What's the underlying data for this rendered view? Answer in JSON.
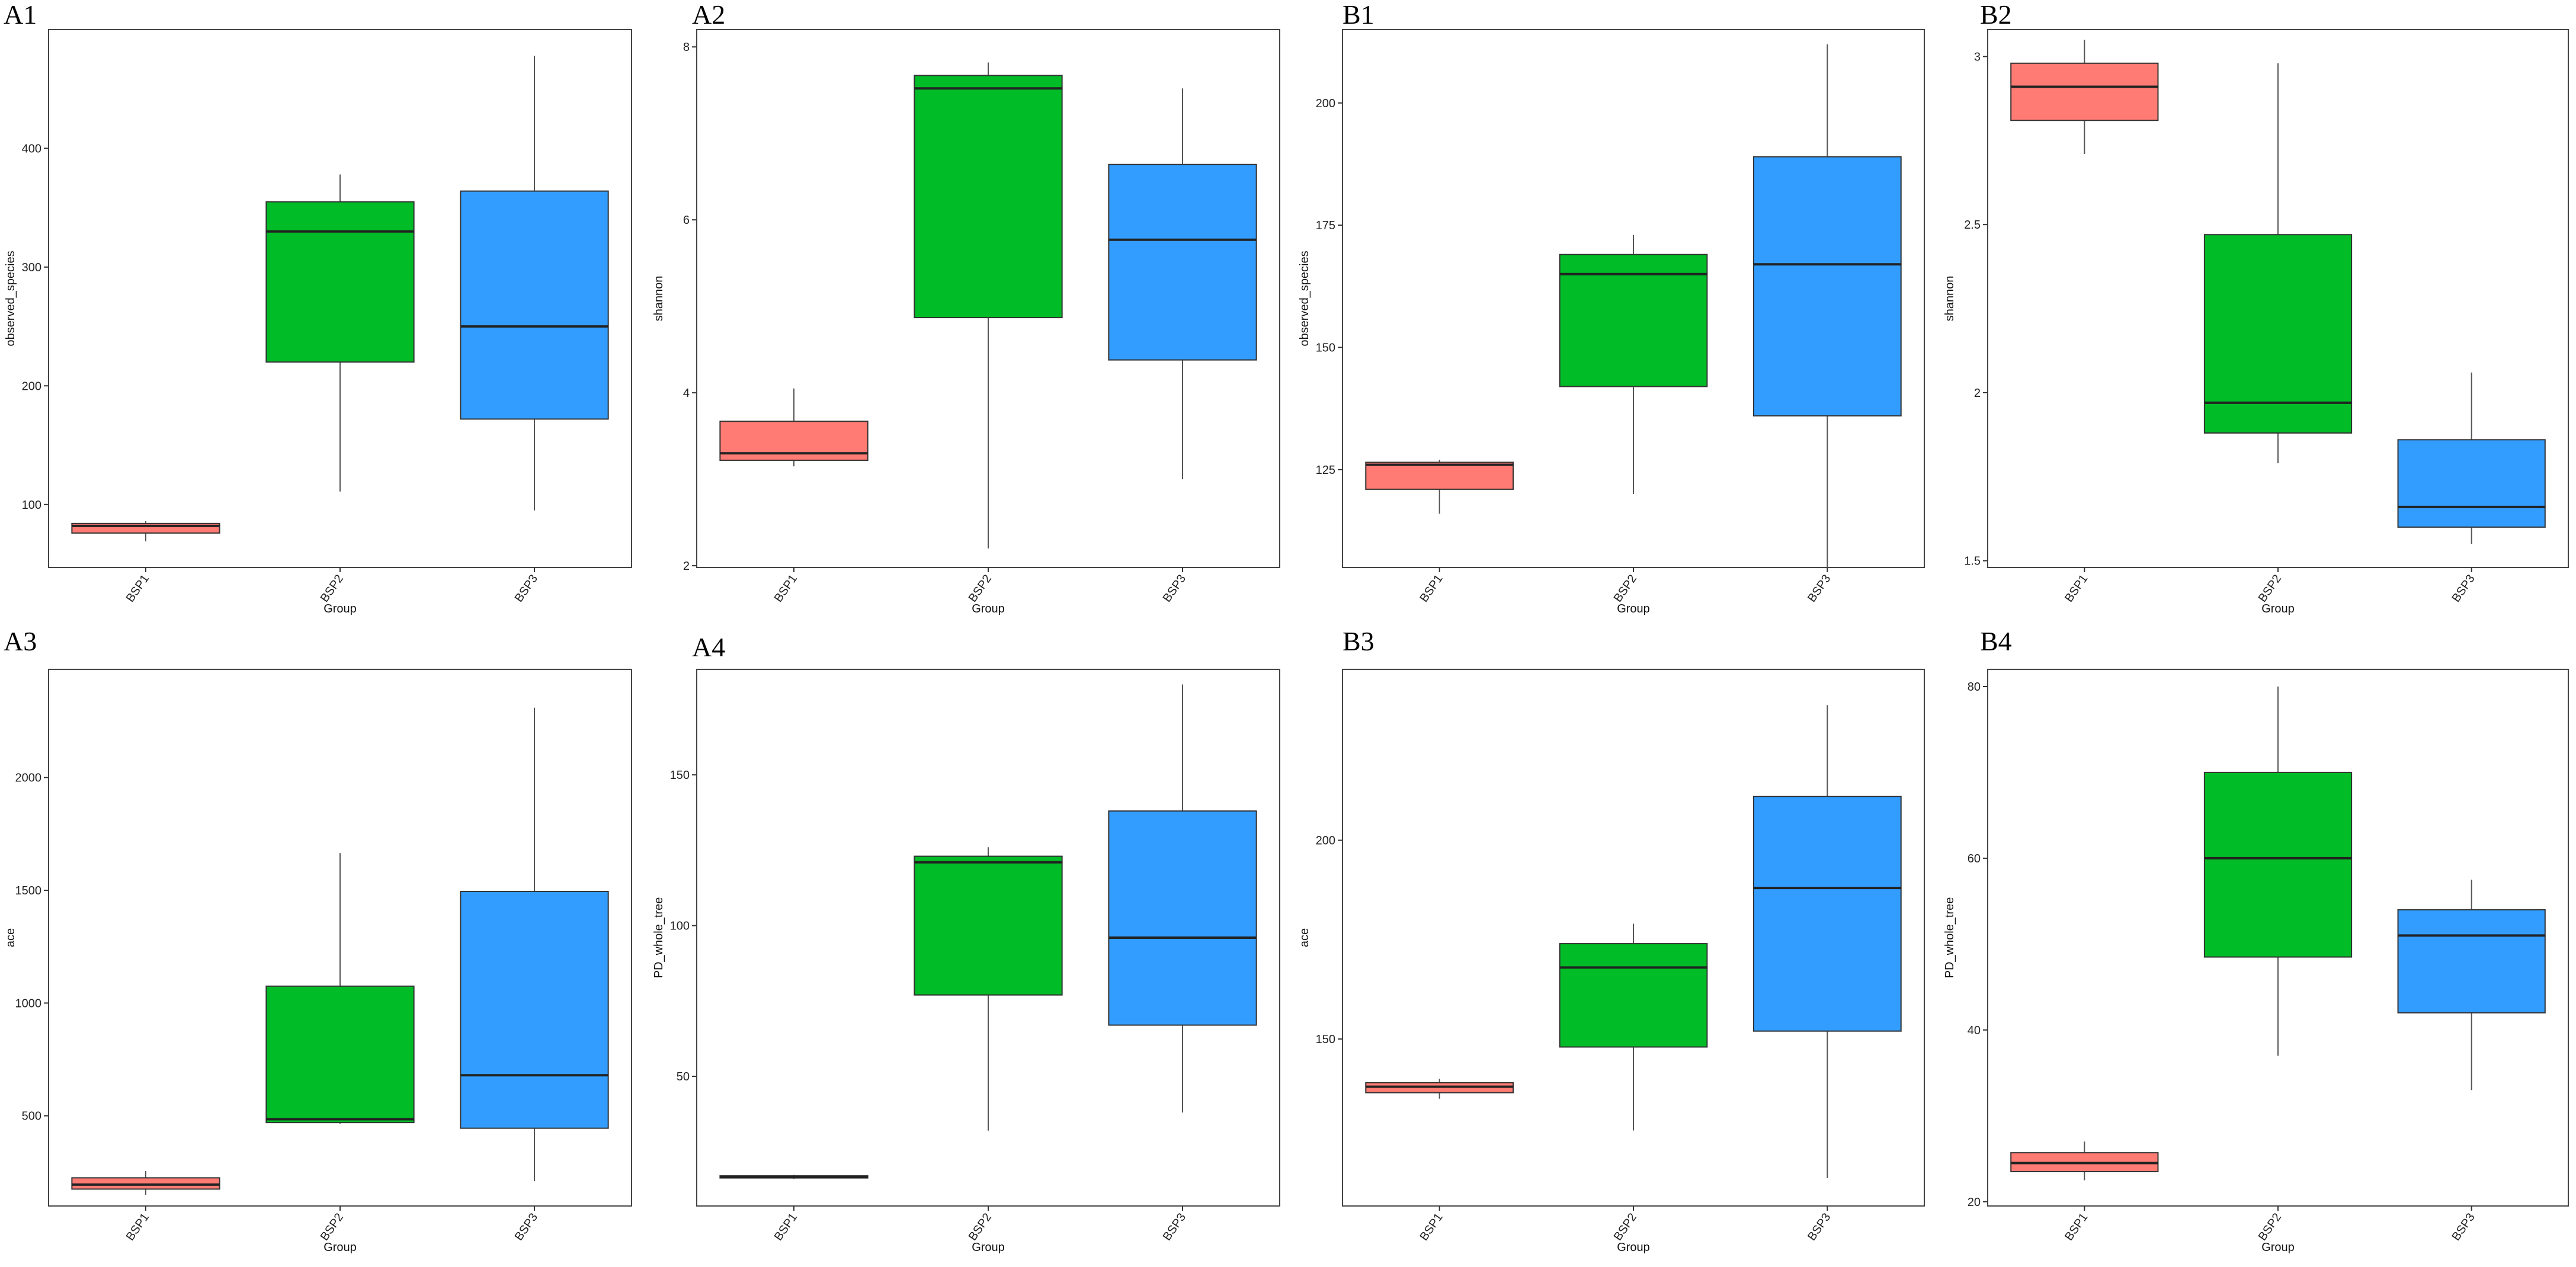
{
  "colors": {
    "BSP1": "#FF7B73",
    "BSP2": "#00BC26",
    "BSP3": "#339DFF"
  },
  "chart_data": [
    {
      "panel": "A1",
      "type": "box",
      "xlabel": "Group",
      "ylabel": "observed_species",
      "categories": [
        "BSP1",
        "BSP2",
        "BSP3"
      ],
      "ylim": [
        47,
        500
      ],
      "yticks": [
        100,
        200,
        300,
        400
      ],
      "boxes": [
        {
          "group": "BSP1",
          "min": 69,
          "q1": 76,
          "median": 82,
          "q3": 84,
          "max": 86
        },
        {
          "group": "BSP2",
          "min": 111,
          "q1": 220,
          "median": 330,
          "q3": 355,
          "max": 378
        },
        {
          "group": "BSP3",
          "min": 95,
          "q1": 172,
          "median": 250,
          "q3": 364,
          "max": 478
        }
      ]
    },
    {
      "panel": "A2",
      "type": "box",
      "xlabel": "Group",
      "ylabel": "shannon",
      "categories": [
        "BSP1",
        "BSP2",
        "BSP3"
      ],
      "ylim": [
        1.98,
        8.2
      ],
      "yticks": [
        2,
        4,
        6,
        8
      ],
      "boxes": [
        {
          "group": "BSP1",
          "min": 3.15,
          "q1": 3.22,
          "median": 3.3,
          "q3": 3.67,
          "max": 4.05
        },
        {
          "group": "BSP2",
          "min": 2.2,
          "q1": 4.87,
          "median": 7.52,
          "q3": 7.67,
          "max": 7.82
        },
        {
          "group": "BSP3",
          "min": 3.0,
          "q1": 4.38,
          "median": 5.77,
          "q3": 6.64,
          "max": 7.52
        }
      ]
    },
    {
      "panel": "B1",
      "type": "box",
      "xlabel": "Group",
      "ylabel": "observed_species",
      "categories": [
        "BSP1",
        "BSP2",
        "BSP3"
      ],
      "ylim": [
        105,
        215
      ],
      "yticks": [
        125,
        150,
        175,
        200
      ],
      "boxes": [
        {
          "group": "BSP1",
          "min": 116,
          "q1": 121,
          "median": 126,
          "q3": 126.5,
          "max": 127
        },
        {
          "group": "BSP2",
          "min": 120,
          "q1": 142,
          "median": 165,
          "q3": 169,
          "max": 173
        },
        {
          "group": "BSP3",
          "min": 105,
          "q1": 136,
          "median": 167,
          "q3": 189,
          "max": 212
        }
      ]
    },
    {
      "panel": "B2",
      "type": "box",
      "xlabel": "Group",
      "ylabel": "shannon",
      "categories": [
        "BSP1",
        "BSP2",
        "BSP3"
      ],
      "ylim": [
        1.48,
        3.08
      ],
      "yticks": [
        1.5,
        2.0,
        2.5,
        3.0
      ],
      "boxes": [
        {
          "group": "BSP1",
          "min": 2.71,
          "q1": 2.81,
          "median": 2.91,
          "q3": 2.98,
          "max": 3.05
        },
        {
          "group": "BSP2",
          "min": 1.79,
          "q1": 1.88,
          "median": 1.97,
          "q3": 2.47,
          "max": 2.98
        },
        {
          "group": "BSP3",
          "min": 1.55,
          "q1": 1.6,
          "median": 1.66,
          "q3": 1.86,
          "max": 2.06
        }
      ]
    },
    {
      "panel": "A3",
      "type": "box",
      "xlabel": "Group",
      "ylabel": "ace",
      "categories": [
        "BSP1",
        "BSP2",
        "BSP3"
      ],
      "ylim": [
        100,
        2480
      ],
      "yticks": [
        500,
        1000,
        1500,
        2000
      ],
      "boxes": [
        {
          "group": "BSP1",
          "min": 150,
          "q1": 175,
          "median": 195,
          "q3": 225,
          "max": 255
        },
        {
          "group": "BSP2",
          "min": 465,
          "q1": 470,
          "median": 485,
          "q3": 1075,
          "max": 1665
        },
        {
          "group": "BSP3",
          "min": 210,
          "q1": 445,
          "median": 680,
          "q3": 1495,
          "max": 2310
        }
      ]
    },
    {
      "panel": "A4",
      "type": "box",
      "xlabel": "Group",
      "ylabel": "PD_whole_tree",
      "categories": [
        "BSP1",
        "BSP2",
        "BSP3"
      ],
      "ylim": [
        7,
        185
      ],
      "yticks": [
        50,
        100,
        150
      ],
      "boxes": [
        {
          "group": "BSP1",
          "min": 16,
          "q1": 16.3,
          "median": 16.7,
          "q3": 17,
          "max": 17.3
        },
        {
          "group": "BSP2",
          "min": 32,
          "q1": 77,
          "median": 121,
          "q3": 123,
          "max": 126
        },
        {
          "group": "BSP3",
          "min": 38,
          "q1": 67,
          "median": 96,
          "q3": 138,
          "max": 180
        }
      ]
    },
    {
      "panel": "B3",
      "type": "box",
      "xlabel": "Group",
      "ylabel": "ace",
      "categories": [
        "BSP1",
        "BSP2",
        "BSP3"
      ],
      "ylim": [
        108,
        243
      ],
      "yticks": [
        150,
        200
      ],
      "boxes": [
        {
          "group": "BSP1",
          "min": 135,
          "q1": 136.5,
          "median": 138,
          "q3": 139,
          "max": 140
        },
        {
          "group": "BSP2",
          "min": 127,
          "q1": 148,
          "median": 168,
          "q3": 174,
          "max": 179
        },
        {
          "group": "BSP3",
          "min": 115,
          "q1": 152,
          "median": 188,
          "q3": 211,
          "max": 234
        }
      ]
    },
    {
      "panel": "B4",
      "type": "box",
      "xlabel": "Group",
      "ylabel": "PD_whole_tree",
      "categories": [
        "BSP1",
        "BSP2",
        "BSP3"
      ],
      "ylim": [
        19.5,
        82
      ],
      "yticks": [
        20,
        40,
        60,
        80
      ],
      "boxes": [
        {
          "group": "BSP1",
          "min": 22.5,
          "q1": 23.5,
          "median": 24.5,
          "q3": 25.7,
          "max": 27
        },
        {
          "group": "BSP2",
          "min": 37,
          "q1": 48.5,
          "median": 60,
          "q3": 70,
          "max": 80
        },
        {
          "group": "BSP3",
          "min": 33,
          "q1": 42,
          "median": 51,
          "q3": 54,
          "max": 57.5
        }
      ]
    }
  ]
}
